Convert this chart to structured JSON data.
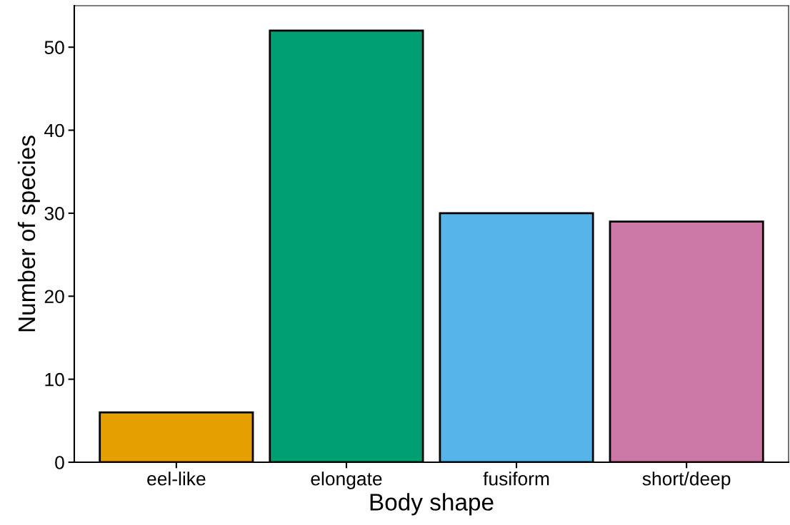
{
  "chart_data": {
    "type": "bar",
    "xlabel": "Body shape",
    "ylabel": "Number of species",
    "categories": [
      "eel-like",
      "elongate",
      "fusiform",
      "short/deep"
    ],
    "values": [
      6,
      52,
      30,
      29
    ],
    "colors": [
      "#e69f00",
      "#009e73",
      "#56b4e9",
      "#cc79a7"
    ],
    "ylim": [
      0,
      55
    ],
    "yticks": [
      0,
      10,
      20,
      30,
      40,
      50
    ],
    "grid": false,
    "legend": false
  }
}
